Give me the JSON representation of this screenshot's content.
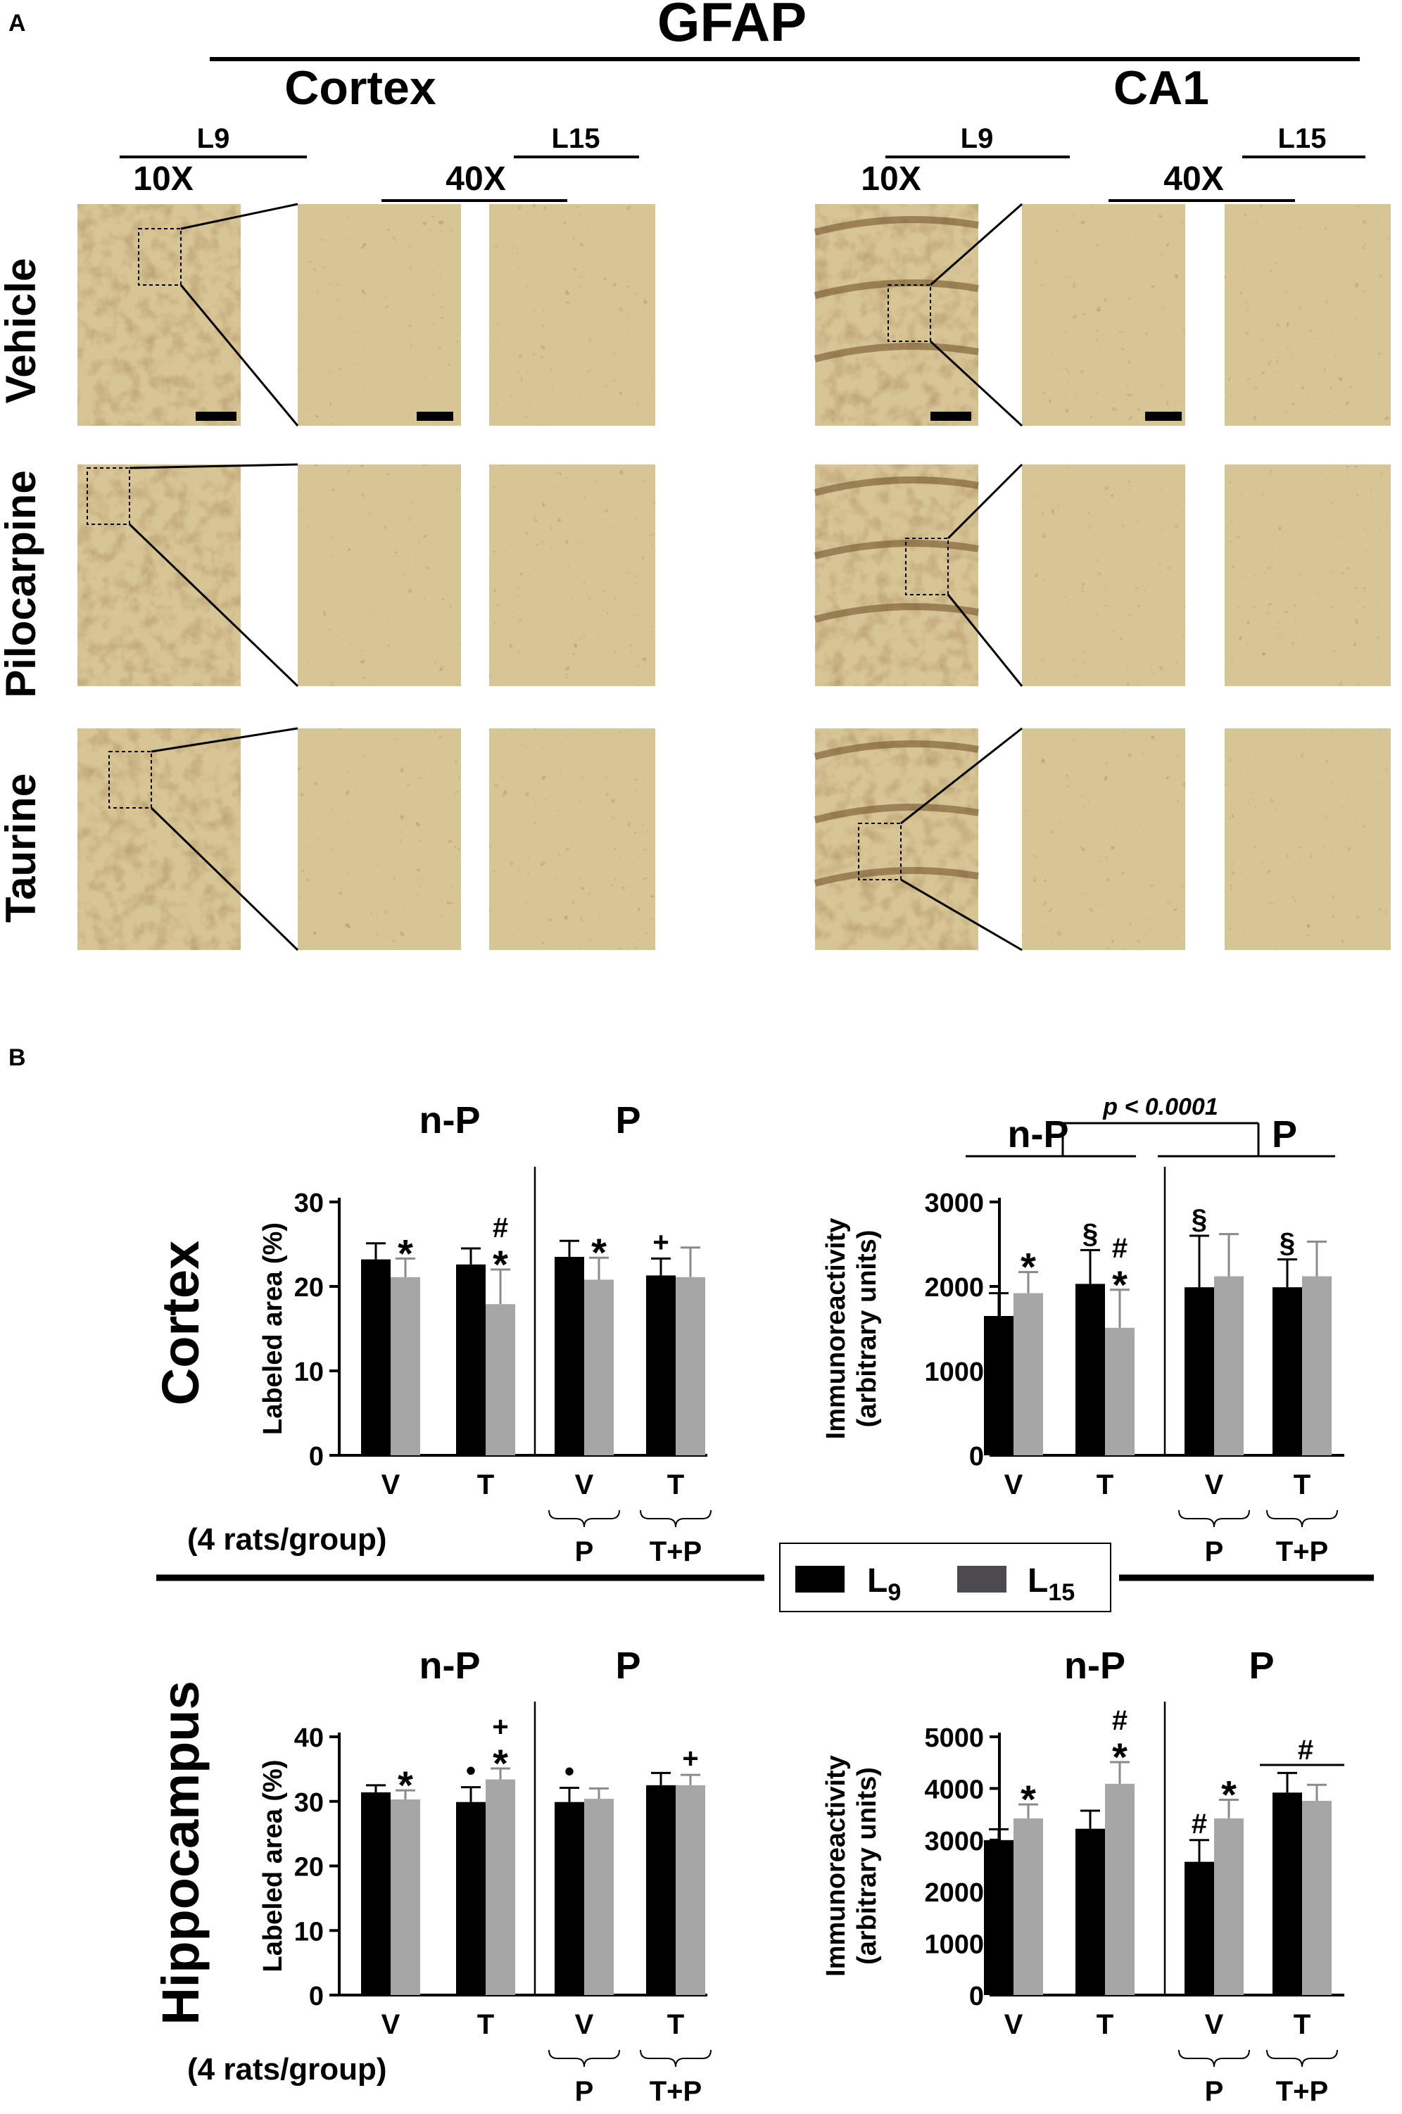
{
  "panel_a": {
    "letter": "A",
    "title": "GFAP",
    "regions": [
      "Cortex",
      "CA1"
    ],
    "level_short": "L9",
    "level_long": "L15",
    "mag_low": "10X",
    "mag_high": "40X",
    "rows": [
      "Vehicle",
      "Pilocarpine",
      "Taurine"
    ]
  },
  "panel_b": {
    "letter": "B",
    "regions": [
      "Cortex",
      "Hippocampus"
    ],
    "group_note": "(4 rats/group)",
    "legend": [
      {
        "label": "L",
        "sub": "9",
        "color": "#000000"
      },
      {
        "label": "L",
        "sub": "15",
        "color": "#4d4a4f"
      }
    ],
    "sig_label": "p < 0.0001",
    "colors": {
      "l9": "#000000",
      "l15": "#a6a6a6",
      "tissue": "#d8c596",
      "tissue_dark": "#6b4a22"
    }
  },
  "chart_data": [
    {
      "type": "bar",
      "panel": "cortex-labeled-area",
      "ylabel": "Labeled area (%)",
      "ylim": [
        0,
        30
      ],
      "yticks": [
        0,
        10,
        20,
        30
      ],
      "categories": [
        "V",
        "T",
        "V",
        "T"
      ],
      "groups": [
        "n-P",
        "P"
      ],
      "brackets": [
        "P",
        "T+P"
      ],
      "series": [
        {
          "name": "L9",
          "values": [
            23.2,
            22.6,
            23.5,
            21.3
          ],
          "errors": [
            1.9,
            1.9,
            1.9,
            2.0
          ]
        },
        {
          "name": "L15",
          "values": [
            21.1,
            17.9,
            20.8,
            21.1
          ],
          "errors": [
            2.2,
            4.1,
            2.6,
            3.5
          ]
        }
      ],
      "annotations": [
        {
          "cat": 0,
          "series": 1,
          "text": [
            "*"
          ]
        },
        {
          "cat": 1,
          "series": 1,
          "text": [
            "#",
            "*"
          ]
        },
        {
          "cat": 2,
          "series": 1,
          "text": [
            "*"
          ]
        },
        {
          "cat": 3,
          "series": 0,
          "text": [
            "+"
          ]
        }
      ]
    },
    {
      "type": "bar",
      "panel": "cortex-immunoreactivity",
      "ylabel": [
        "Immunoreactivity",
        "(arbitrary units)"
      ],
      "ylim": [
        0,
        3000
      ],
      "yticks": [
        0,
        1000,
        2000,
        3000
      ],
      "categories": [
        "V",
        "T",
        "V",
        "T"
      ],
      "groups": [
        "n-P",
        "P"
      ],
      "brackets": [
        "P",
        "T+P"
      ],
      "series": [
        {
          "name": "L9",
          "values": [
            1650,
            2030,
            1990,
            1990
          ],
          "errors": [
            270,
            400,
            610,
            330
          ]
        },
        {
          "name": "L15",
          "values": [
            1920,
            1510,
            2120,
            2120
          ],
          "errors": [
            250,
            450,
            500,
            410
          ]
        }
      ],
      "annotations": [
        {
          "cat": 0,
          "series": 1,
          "text": [
            "*"
          ]
        },
        {
          "cat": 1,
          "series": 0,
          "text": [
            "§"
          ]
        },
        {
          "cat": 1,
          "series": 1,
          "text": [
            "#",
            "*"
          ]
        },
        {
          "cat": 2,
          "series": 0,
          "text": [
            "§"
          ]
        },
        {
          "cat": 3,
          "series": 0,
          "text": [
            "§"
          ]
        }
      ]
    },
    {
      "type": "bar",
      "panel": "hippocampus-labeled-area",
      "ylabel": "Labeled area (%)",
      "ylim": [
        0,
        40
      ],
      "yticks": [
        0,
        10,
        20,
        30,
        40
      ],
      "categories": [
        "V",
        "T",
        "V",
        "T"
      ],
      "groups": [
        "n-P",
        "P"
      ],
      "brackets": [
        "P",
        "T+P"
      ],
      "series": [
        {
          "name": "L9",
          "values": [
            31.4,
            29.9,
            29.9,
            32.5
          ],
          "errors": [
            1.1,
            2.3,
            2.2,
            1.9
          ]
        },
        {
          "name": "L15",
          "values": [
            30.3,
            33.4,
            30.4,
            32.5
          ],
          "errors": [
            1.4,
            1.7,
            1.6,
            1.6
          ]
        }
      ],
      "annotations": [
        {
          "cat": 0,
          "series": 1,
          "text": [
            "*"
          ]
        },
        {
          "cat": 1,
          "series": 0,
          "text": [
            "•"
          ]
        },
        {
          "cat": 1,
          "series": 1,
          "text": [
            "+",
            "*"
          ]
        },
        {
          "cat": 2,
          "series": 0,
          "text": [
            "•"
          ]
        },
        {
          "cat": 3,
          "series": 1,
          "text": [
            "+"
          ]
        }
      ]
    },
    {
      "type": "bar",
      "panel": "hippocampus-immunoreactivity",
      "ylabel": [
        "Immunoreactivity",
        "(arbitrary units)"
      ],
      "ylim": [
        0,
        5000
      ],
      "yticks": [
        0,
        1000,
        2000,
        3000,
        4000,
        5000
      ],
      "categories": [
        "V",
        "T",
        "V",
        "T"
      ],
      "groups": [
        "n-P",
        "P"
      ],
      "brackets": [
        "P",
        "T+P"
      ],
      "series": [
        {
          "name": "L9",
          "values": [
            3000,
            3220,
            2580,
            3920
          ],
          "errors": [
            210,
            350,
            420,
            380
          ]
        },
        {
          "name": "L15",
          "values": [
            3420,
            4090,
            3420,
            3760
          ],
          "errors": [
            270,
            420,
            360,
            310
          ]
        }
      ],
      "annotations": [
        {
          "cat": 0,
          "series": 1,
          "text": [
            "*"
          ]
        },
        {
          "cat": 1,
          "series": 1,
          "text": [
            "#",
            "*"
          ]
        },
        {
          "cat": 2,
          "series": 0,
          "text": [
            "#"
          ]
        },
        {
          "cat": 2,
          "series": 1,
          "text": [
            "*"
          ]
        },
        {
          "cat": 3,
          "span": true,
          "text": [
            "#"
          ]
        }
      ]
    }
  ]
}
